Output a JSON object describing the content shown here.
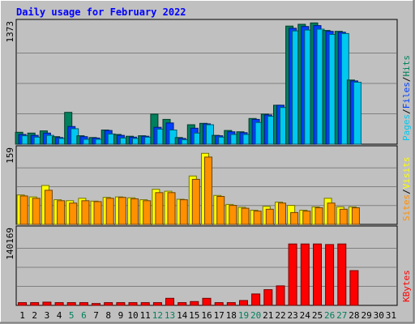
{
  "title": "Daily usage for February 2022",
  "colors": {
    "background": "#c0c0c0",
    "plot_bg": "#c0c0c0",
    "title": "#0000ff",
    "hits": "#00805c",
    "files": "#0040ff",
    "pages": "#00c8f0",
    "visits": "#ffff00",
    "sites": "#ff9000",
    "kbytes": "#ff0000",
    "weekend": "#00805c",
    "weekday": "#000000"
  },
  "chart_data": [
    {
      "type": "bar",
      "name": "hits-files-pages",
      "scale_label": "1373",
      "ymax": 1373,
      "legend": [
        {
          "label": "Pages",
          "color": "#00c8f0"
        },
        {
          "label": "Files",
          "color": "#0040ff"
        },
        {
          "label": "Hits",
          "color": "#00805c"
        }
      ],
      "categories": [
        1,
        2,
        3,
        4,
        5,
        6,
        7,
        8,
        9,
        10,
        11,
        12,
        13,
        14,
        15,
        16,
        17,
        18,
        19,
        20,
        21,
        22,
        23,
        24,
        25,
        26,
        27,
        28,
        29,
        30,
        31
      ],
      "series": [
        {
          "name": "Hits",
          "values": [
            135,
            125,
            150,
            85,
            360,
            95,
            75,
            160,
            110,
            90,
            95,
            340,
            280,
            75,
            220,
            235,
            100,
            155,
            140,
            290,
            340,
            440,
            1335,
            1355,
            1370,
            1285,
            1275,
            725,
            null,
            null,
            null
          ]
        },
        {
          "name": "Files",
          "values": [
            110,
            100,
            125,
            75,
            200,
            85,
            70,
            155,
            100,
            80,
            90,
            190,
            240,
            65,
            180,
            230,
            95,
            140,
            130,
            280,
            330,
            440,
            1310,
            1330,
            1340,
            1275,
            1265,
            715,
            null,
            null,
            null
          ]
        },
        {
          "name": "Pages",
          "values": [
            95,
            80,
            100,
            65,
            175,
            55,
            55,
            115,
            70,
            65,
            80,
            170,
            160,
            50,
            125,
            220,
            80,
            110,
            110,
            245,
            315,
            415,
            1280,
            1290,
            1300,
            1240,
            1250,
            700,
            null,
            null,
            null
          ]
        }
      ]
    },
    {
      "type": "bar",
      "name": "visits-sites",
      "scale_label": "159",
      "ymax": 159,
      "legend": [
        {
          "label": "Sites",
          "color": "#ff9000"
        },
        {
          "label": "Visits",
          "color": "#ffff00"
        }
      ],
      "categories": [
        1,
        2,
        3,
        4,
        5,
        6,
        7,
        8,
        9,
        10,
        11,
        12,
        13,
        14,
        15,
        16,
        17,
        18,
        19,
        20,
        21,
        22,
        23,
        24,
        25,
        26,
        27,
        28,
        29,
        30,
        31
      ],
      "series": [
        {
          "name": "Visits",
          "values": [
            62,
            58,
            82,
            52,
            50,
            55,
            49,
            57,
            58,
            56,
            52,
            74,
            70,
            53,
            102,
            150,
            61,
            42,
            36,
            30,
            38,
            47,
            40,
            30,
            37,
            55,
            37,
            37,
            null,
            null,
            null
          ]
        },
        {
          "name": "Sites",
          "values": [
            60,
            55,
            72,
            50,
            45,
            50,
            48,
            55,
            57,
            54,
            50,
            67,
            67,
            52,
            95,
            142,
            59,
            40,
            34,
            28,
            32,
            45,
            25,
            28,
            35,
            45,
            32,
            35,
            null,
            null,
            null
          ]
        }
      ]
    },
    {
      "type": "bar",
      "name": "kbytes",
      "scale_label": "140169",
      "ymax": 140169,
      "legend": [
        {
          "label": "KBytes",
          "color": "#ff0000"
        }
      ],
      "categories": [
        1,
        2,
        3,
        4,
        5,
        6,
        7,
        8,
        9,
        10,
        11,
        12,
        13,
        14,
        15,
        16,
        17,
        18,
        19,
        20,
        21,
        22,
        23,
        24,
        25,
        26,
        27,
        28,
        29,
        30,
        31
      ],
      "series": [
        {
          "name": "KBytes",
          "values": [
            5000,
            5000,
            6000,
            5000,
            5000,
            5000,
            3500,
            5000,
            5000,
            5000,
            5000,
            5000,
            13000,
            5000,
            7000,
            13000,
            5000,
            5000,
            9000,
            21000,
            29000,
            36000,
            113000,
            113000,
            113000,
            112000,
            113000,
            64000,
            null,
            null,
            null
          ]
        }
      ]
    }
  ],
  "weekend_days": [
    5,
    6,
    12,
    13,
    19,
    20,
    26,
    27
  ]
}
